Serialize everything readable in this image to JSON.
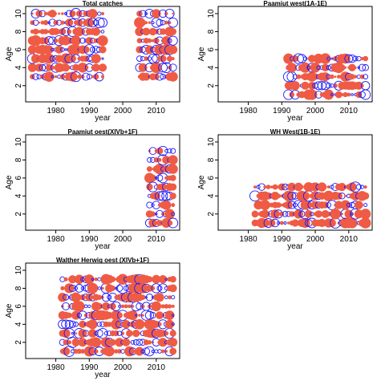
{
  "colors": {
    "positive": "#ef5b45",
    "negative": "#1a1aff",
    "frame": "#000000",
    "background": "#ffffff"
  },
  "chart_data": [
    {
      "type": "scatter",
      "title": "Total catches",
      "xlabel": "year",
      "ylabel": "Age",
      "xlim": [
        1971,
        2017
      ],
      "ylim": [
        0.2,
        10.8
      ],
      "xticks": [
        1980,
        1990,
        2000,
        2010
      ],
      "yticks": [
        2,
        4,
        6,
        8,
        10
      ],
      "grid": false,
      "series": [
        {
          "x_range": [
            1973,
            1994
          ],
          "ages": [
            3,
            4,
            5,
            6,
            7,
            8,
            9,
            10
          ],
          "seed": 1
        },
        {
          "x_range": [
            2005,
            2015
          ],
          "ages": [
            3,
            4,
            5,
            6,
            7,
            8,
            9,
            10
          ],
          "seed": 2
        }
      ]
    },
    {
      "type": "scatter",
      "title": "Paamiut    west(1A-1E)",
      "xlabel": "year",
      "ylabel": "Age",
      "xlim": [
        1971,
        2017
      ],
      "ylim": [
        0.2,
        10.8
      ],
      "xticks": [
        1980,
        1990,
        2000,
        2010
      ],
      "yticks": [
        2,
        4,
        6,
        8,
        10
      ],
      "grid": false,
      "series": [
        {
          "x_range": [
            1992,
            2015
          ],
          "ages": [
            1,
            2,
            3,
            4,
            5
          ],
          "seed": 3
        }
      ]
    },
    {
      "type": "scatter",
      "title": "Paamiut    oest(XIVb+1F)",
      "xlabel": "year",
      "ylabel": "Age",
      "xlim": [
        1971,
        2017
      ],
      "ylim": [
        0.2,
        10.8
      ],
      "xticks": [
        1980,
        1990,
        2000,
        2010
      ],
      "yticks": [
        2,
        4,
        6,
        8,
        10
      ],
      "grid": false,
      "series": [
        {
          "x_range": [
            2008,
            2015
          ],
          "ages": [
            1,
            2,
            3,
            4,
            5,
            6,
            7,
            8,
            9
          ],
          "seed": 4
        }
      ]
    },
    {
      "type": "scatter",
      "title": "WH    West(1B-1E)",
      "xlabel": "year",
      "ylabel": "Age",
      "xlim": [
        1971,
        2017
      ],
      "ylim": [
        0.2,
        10.8
      ],
      "xticks": [
        1980,
        1990,
        2000,
        2010
      ],
      "yticks": [
        2,
        4,
        6,
        8,
        10
      ],
      "grid": false,
      "series": [
        {
          "x_range": [
            1982,
            2015
          ],
          "ages": [
            1,
            2,
            3,
            4,
            5
          ],
          "seed": 5
        }
      ]
    },
    {
      "type": "scatter",
      "title": "Walther    Herwig      oest  (XIVb+1F)",
      "xlabel": "year",
      "ylabel": "Age",
      "xlim": [
        1971,
        2017
      ],
      "ylim": [
        0.2,
        10.8
      ],
      "xticks": [
        1980,
        1990,
        2000,
        2010
      ],
      "yticks": [
        2,
        4,
        6,
        8,
        10
      ],
      "grid": false,
      "series": [
        {
          "x_range": [
            1982,
            2015
          ],
          "ages": [
            1,
            2,
            3,
            4,
            5,
            6,
            7,
            8,
            9
          ],
          "seed": 6
        }
      ]
    }
  ]
}
